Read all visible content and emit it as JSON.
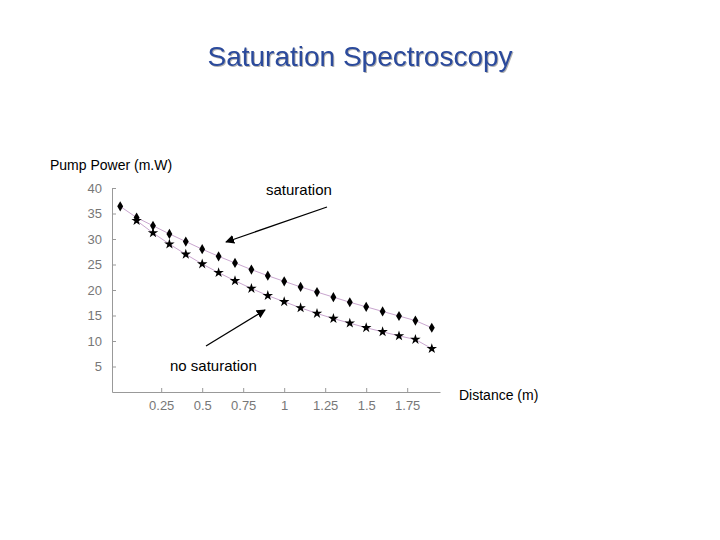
{
  "chart_data": {
    "type": "scatter",
    "title": "Saturation Spectroscopy",
    "y_label": "Pump Power (m.W)",
    "x_label": "Distance (m)",
    "x": [
      0,
      0.1,
      0.2,
      0.3,
      0.4,
      0.5,
      0.6,
      0.7,
      0.8,
      0.9,
      1.0,
      1.1,
      1.2,
      1.3,
      1.4,
      1.5,
      1.6,
      1.7,
      1.8,
      1.9
    ],
    "series": [
      {
        "color": "#000000",
        "marker": "diamond",
        "line_style": "solid",
        "values": [
          36.4,
          34.2,
          32.6,
          31.0,
          29.5,
          28.0,
          26.6,
          25.3,
          24.0,
          22.8,
          21.7,
          20.6,
          19.6,
          18.6,
          17.6,
          16.7,
          15.8,
          14.9,
          14.0,
          12.6
        ]
      },
      {
        "color": "#000000",
        "marker": "star",
        "line_style": "solid",
        "values": [
          null,
          33.6,
          31.2,
          29.0,
          27.0,
          25.1,
          23.4,
          21.8,
          20.3,
          18.9,
          17.7,
          16.5,
          15.4,
          14.4,
          13.5,
          12.6,
          11.8,
          11.0,
          10.3,
          8.5
        ]
      }
    ],
    "annotations": [
      {
        "text": "saturation"
      },
      {
        "text": "no saturation"
      }
    ],
    "xlim": [
      -0.05,
      1.95
    ],
    "ylim": [
      0,
      40
    ],
    "xticks": [
      0.25,
      0.5,
      0.75,
      1,
      1.25,
      1.5,
      1.75
    ],
    "yticks": [
      5,
      10,
      15,
      20,
      25,
      30,
      35,
      40
    ],
    "grid": false
  }
}
